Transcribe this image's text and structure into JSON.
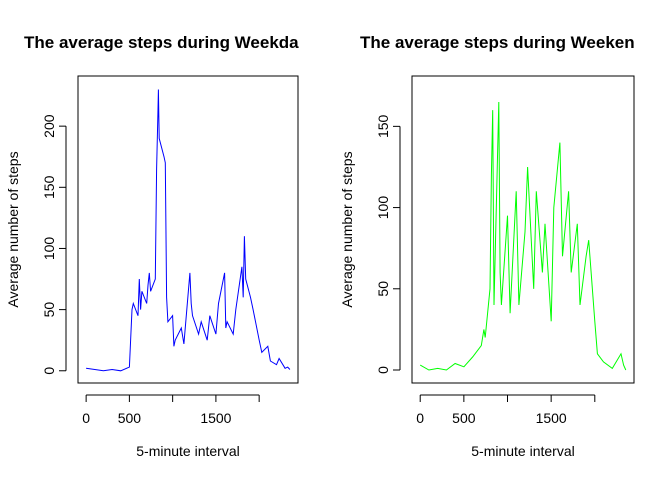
{
  "chart_data": [
    {
      "type": "line",
      "title": "The average steps during Weekda",
      "x_label": "5-minute interval",
      "y_label": "Average number of steps",
      "x": [
        0,
        100,
        200,
        300,
        400,
        500,
        530,
        545,
        600,
        615,
        630,
        645,
        700,
        715,
        730,
        745,
        800,
        815,
        830,
        835,
        845,
        900,
        915,
        930,
        945,
        1000,
        1015,
        1030,
        1100,
        1130,
        1200,
        1215,
        1230,
        1300,
        1330,
        1400,
        1430,
        1500,
        1530,
        1600,
        1615,
        1630,
        1700,
        1730,
        1800,
        1815,
        1830,
        1845,
        1900,
        1930,
        2000,
        2030,
        2100,
        2130,
        2200,
        2230,
        2300,
        2330,
        2355
      ],
      "series": [
        {
          "name": "Weekday",
          "color": "#0000ff",
          "values": [
            2,
            1,
            0,
            1,
            0,
            3,
            50,
            55,
            45,
            75,
            50,
            65,
            55,
            70,
            80,
            65,
            75,
            165,
            210,
            230,
            190,
            175,
            170,
            60,
            40,
            45,
            20,
            25,
            35,
            22,
            80,
            55,
            45,
            30,
            40,
            25,
            45,
            30,
            55,
            80,
            35,
            40,
            30,
            50,
            85,
            60,
            110,
            75,
            60,
            50,
            25,
            15,
            20,
            8,
            5,
            10,
            2,
            3,
            1
          ]
        }
      ],
      "xlim": [
        -94,
        2449
      ],
      "ylim": [
        -10,
        241
      ],
      "xticks": [
        0,
        500,
        {
          "value": 1000,
          "label": null
        },
        1500,
        {
          "value": 2000,
          "label": null
        }
      ],
      "yticks": [
        0,
        50,
        100,
        150,
        200
      ]
    },
    {
      "type": "line",
      "title": "The average steps during Weeken",
      "x_label": "5-minute interval",
      "y_label": "Average number of steps",
      "x": [
        0,
        100,
        200,
        300,
        400,
        500,
        600,
        700,
        730,
        745,
        800,
        815,
        830,
        845,
        900,
        915,
        930,
        1000,
        1030,
        1100,
        1130,
        1200,
        1230,
        1300,
        1330,
        1400,
        1430,
        1500,
        1530,
        1600,
        1630,
        1700,
        1730,
        1800,
        1830,
        1900,
        1930,
        2000,
        2030,
        2100,
        2200,
        2300,
        2330,
        2355
      ],
      "series": [
        {
          "name": "Weekend",
          "color": "#00ff00",
          "values": [
            3,
            0,
            1,
            0,
            4,
            2,
            8,
            15,
            25,
            20,
            50,
            120,
            160,
            40,
            165,
            60,
            40,
            95,
            35,
            110,
            40,
            85,
            125,
            50,
            110,
            60,
            90,
            30,
            100,
            140,
            70,
            110,
            60,
            90,
            40,
            70,
            80,
            30,
            10,
            5,
            1,
            10,
            3,
            0
          ]
        }
      ],
      "xlim": [
        -94,
        2449
      ],
      "ylim": [
        -8,
        181
      ],
      "xticks": [
        0,
        500,
        {
          "value": 1000,
          "label": null
        },
        1500,
        {
          "value": 2000,
          "label": null
        }
      ],
      "yticks": [
        0,
        50,
        100,
        150
      ]
    }
  ]
}
